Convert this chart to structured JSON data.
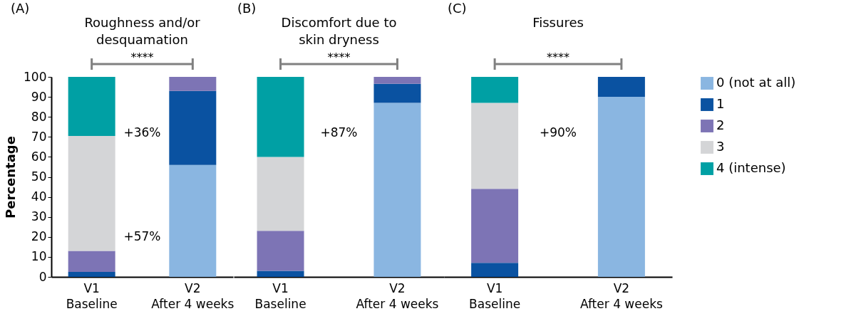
{
  "chart_data": [
    {
      "type": "bar",
      "stacked": true,
      "title": "Roughness and/or desquamation",
      "ylabel": "Percentage",
      "categories": [
        "V1 Baseline",
        "V2 After 4 weeks"
      ],
      "ylim": [
        0,
        100
      ],
      "yticks": [
        0,
        10,
        20,
        30,
        40,
        50,
        60,
        70,
        80,
        90,
        100
      ],
      "series": [
        {
          "color": "#8ab6e1",
          "values": [
            0,
            56
          ]
        },
        {
          "color": "#0a52a1",
          "values": [
            2.5,
            37
          ]
        },
        {
          "color": "#7d74b5",
          "values": [
            10.5,
            7
          ]
        },
        {
          "color": "#d4d5d7",
          "values": [
            57.5,
            0
          ]
        },
        {
          "color": "#00a0a4",
          "values": [
            29.5,
            0
          ]
        }
      ],
      "annotations": [
        "(A)",
        "****",
        "+36%",
        "+57%"
      ]
    },
    {
      "type": "bar",
      "stacked": true,
      "title": "Discomfort due to skin dryness",
      "categories": [
        "V1 Baseline",
        "V2 After 4 weeks"
      ],
      "ylim": [
        0,
        100
      ],
      "tick_labels": "x",
      "series": [
        {
          "color": "#8ab6e1",
          "values": [
            0,
            87
          ]
        },
        {
          "color": "#0a52a1",
          "values": [
            3,
            9.5
          ]
        },
        {
          "color": "#7d74b5",
          "values": [
            20,
            3.5
          ]
        },
        {
          "color": "#d4d5d7",
          "values": [
            37,
            0
          ]
        },
        {
          "color": "#00a0a4",
          "values": [
            40,
            0
          ]
        }
      ],
      "annotations": [
        "(B)",
        "****",
        "+87%"
      ]
    },
    {
      "type": "bar",
      "stacked": true,
      "title": "Fissures",
      "categories": [
        "V1 Baseline",
        "V2 After 4 weeks"
      ],
      "ylim": [
        0,
        100
      ],
      "tick_labels": "x",
      "legend": "right",
      "series": [
        {
          "name": "0 (not at all)",
          "color": "#8ab6e1",
          "values": [
            0,
            90
          ]
        },
        {
          "name": "1",
          "color": "#0a52a1",
          "values": [
            7,
            10
          ]
        },
        {
          "name": "2",
          "color": "#7d74b5",
          "values": [
            37,
            0
          ]
        },
        {
          "name": "3",
          "color": "#d4d5d7",
          "values": [
            43,
            0
          ]
        },
        {
          "name": "4 (intense)",
          "color": "#00a0a4",
          "values": [
            13,
            0
          ]
        }
      ],
      "annotations": [
        "(C)",
        "****",
        "+90%"
      ]
    }
  ]
}
